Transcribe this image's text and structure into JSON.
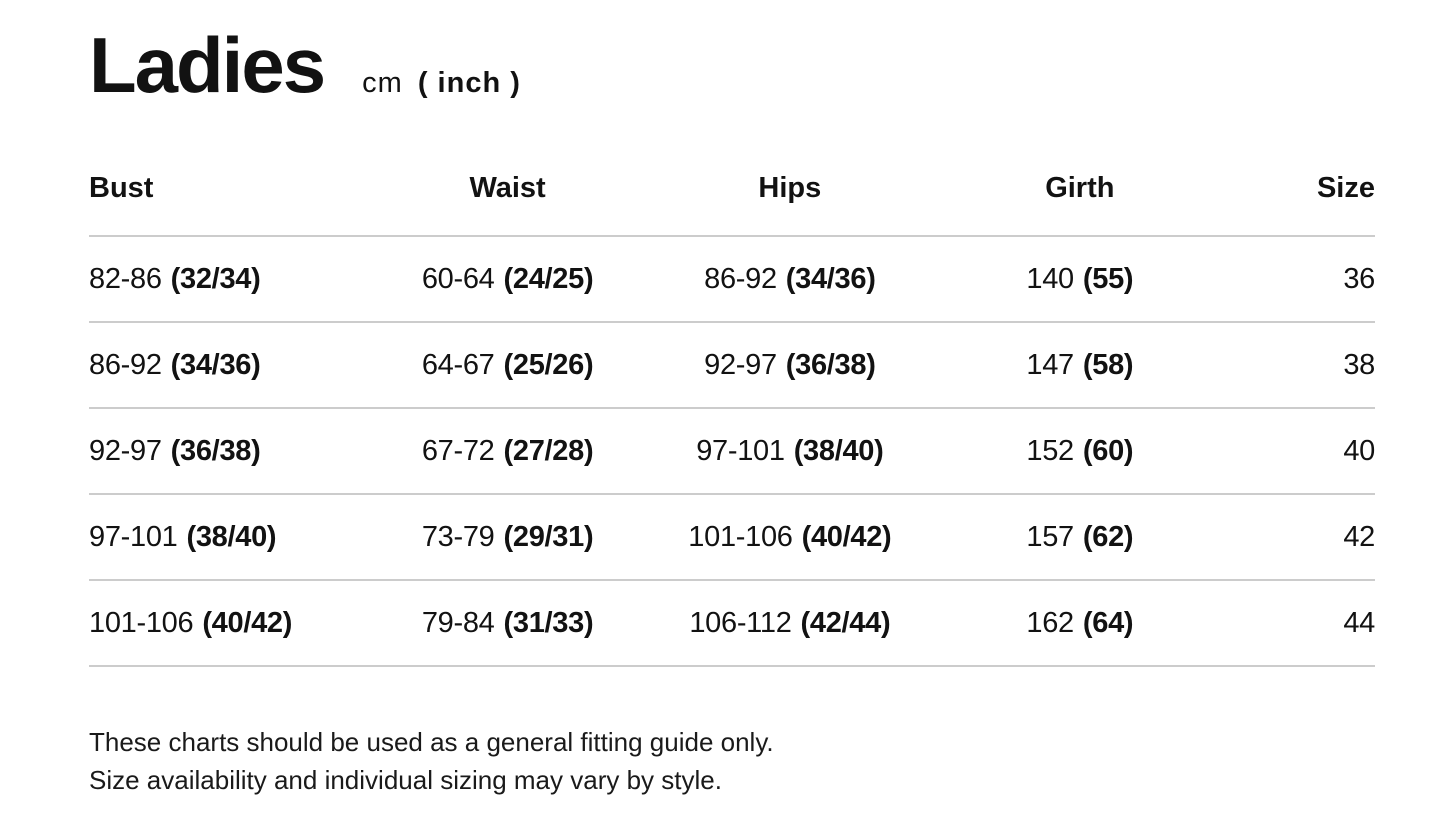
{
  "header": {
    "title": "Ladies",
    "unit_prefix": "cm",
    "unit_suffix": "( inch )"
  },
  "table": {
    "columns": [
      "Bust",
      "Waist",
      "Hips",
      "Girth",
      "Size"
    ],
    "rows": [
      {
        "bust_cm": "82-86",
        "bust_in": "(32/34)",
        "waist_cm": "60-64",
        "waist_in": "(24/25)",
        "hips_cm": "86-92",
        "hips_in": "(34/36)",
        "girth_cm": "140",
        "girth_in": "(55)",
        "size": "36"
      },
      {
        "bust_cm": "86-92",
        "bust_in": "(34/36)",
        "waist_cm": "64-67",
        "waist_in": "(25/26)",
        "hips_cm": "92-97",
        "hips_in": "(36/38)",
        "girth_cm": "147",
        "girth_in": "(58)",
        "size": "38"
      },
      {
        "bust_cm": "92-97",
        "bust_in": "(36/38)",
        "waist_cm": "67-72",
        "waist_in": "(27/28)",
        "hips_cm": "97-101",
        "hips_in": "(38/40)",
        "girth_cm": "152",
        "girth_in": "(60)",
        "size": "40"
      },
      {
        "bust_cm": "97-101",
        "bust_in": "(38/40)",
        "waist_cm": "73-79",
        "waist_in": "(29/31)",
        "hips_cm": "101-106",
        "hips_in": "(40/42)",
        "girth_cm": "157",
        "girth_in": "(62)",
        "size": "42"
      },
      {
        "bust_cm": "101-106",
        "bust_in": "(40/42)",
        "waist_cm": "79-84",
        "waist_in": "(31/33)",
        "hips_cm": "106-112",
        "hips_in": "(42/44)",
        "girth_cm": "162",
        "girth_in": "(64)",
        "size": "44"
      }
    ]
  },
  "footer": {
    "line1": "These charts should be used as a general fitting guide only.",
    "line2": "Size availability and individual sizing may vary by style."
  },
  "colors": {
    "text": "#121212",
    "divider": "#cccccc",
    "background": "#ffffff"
  }
}
